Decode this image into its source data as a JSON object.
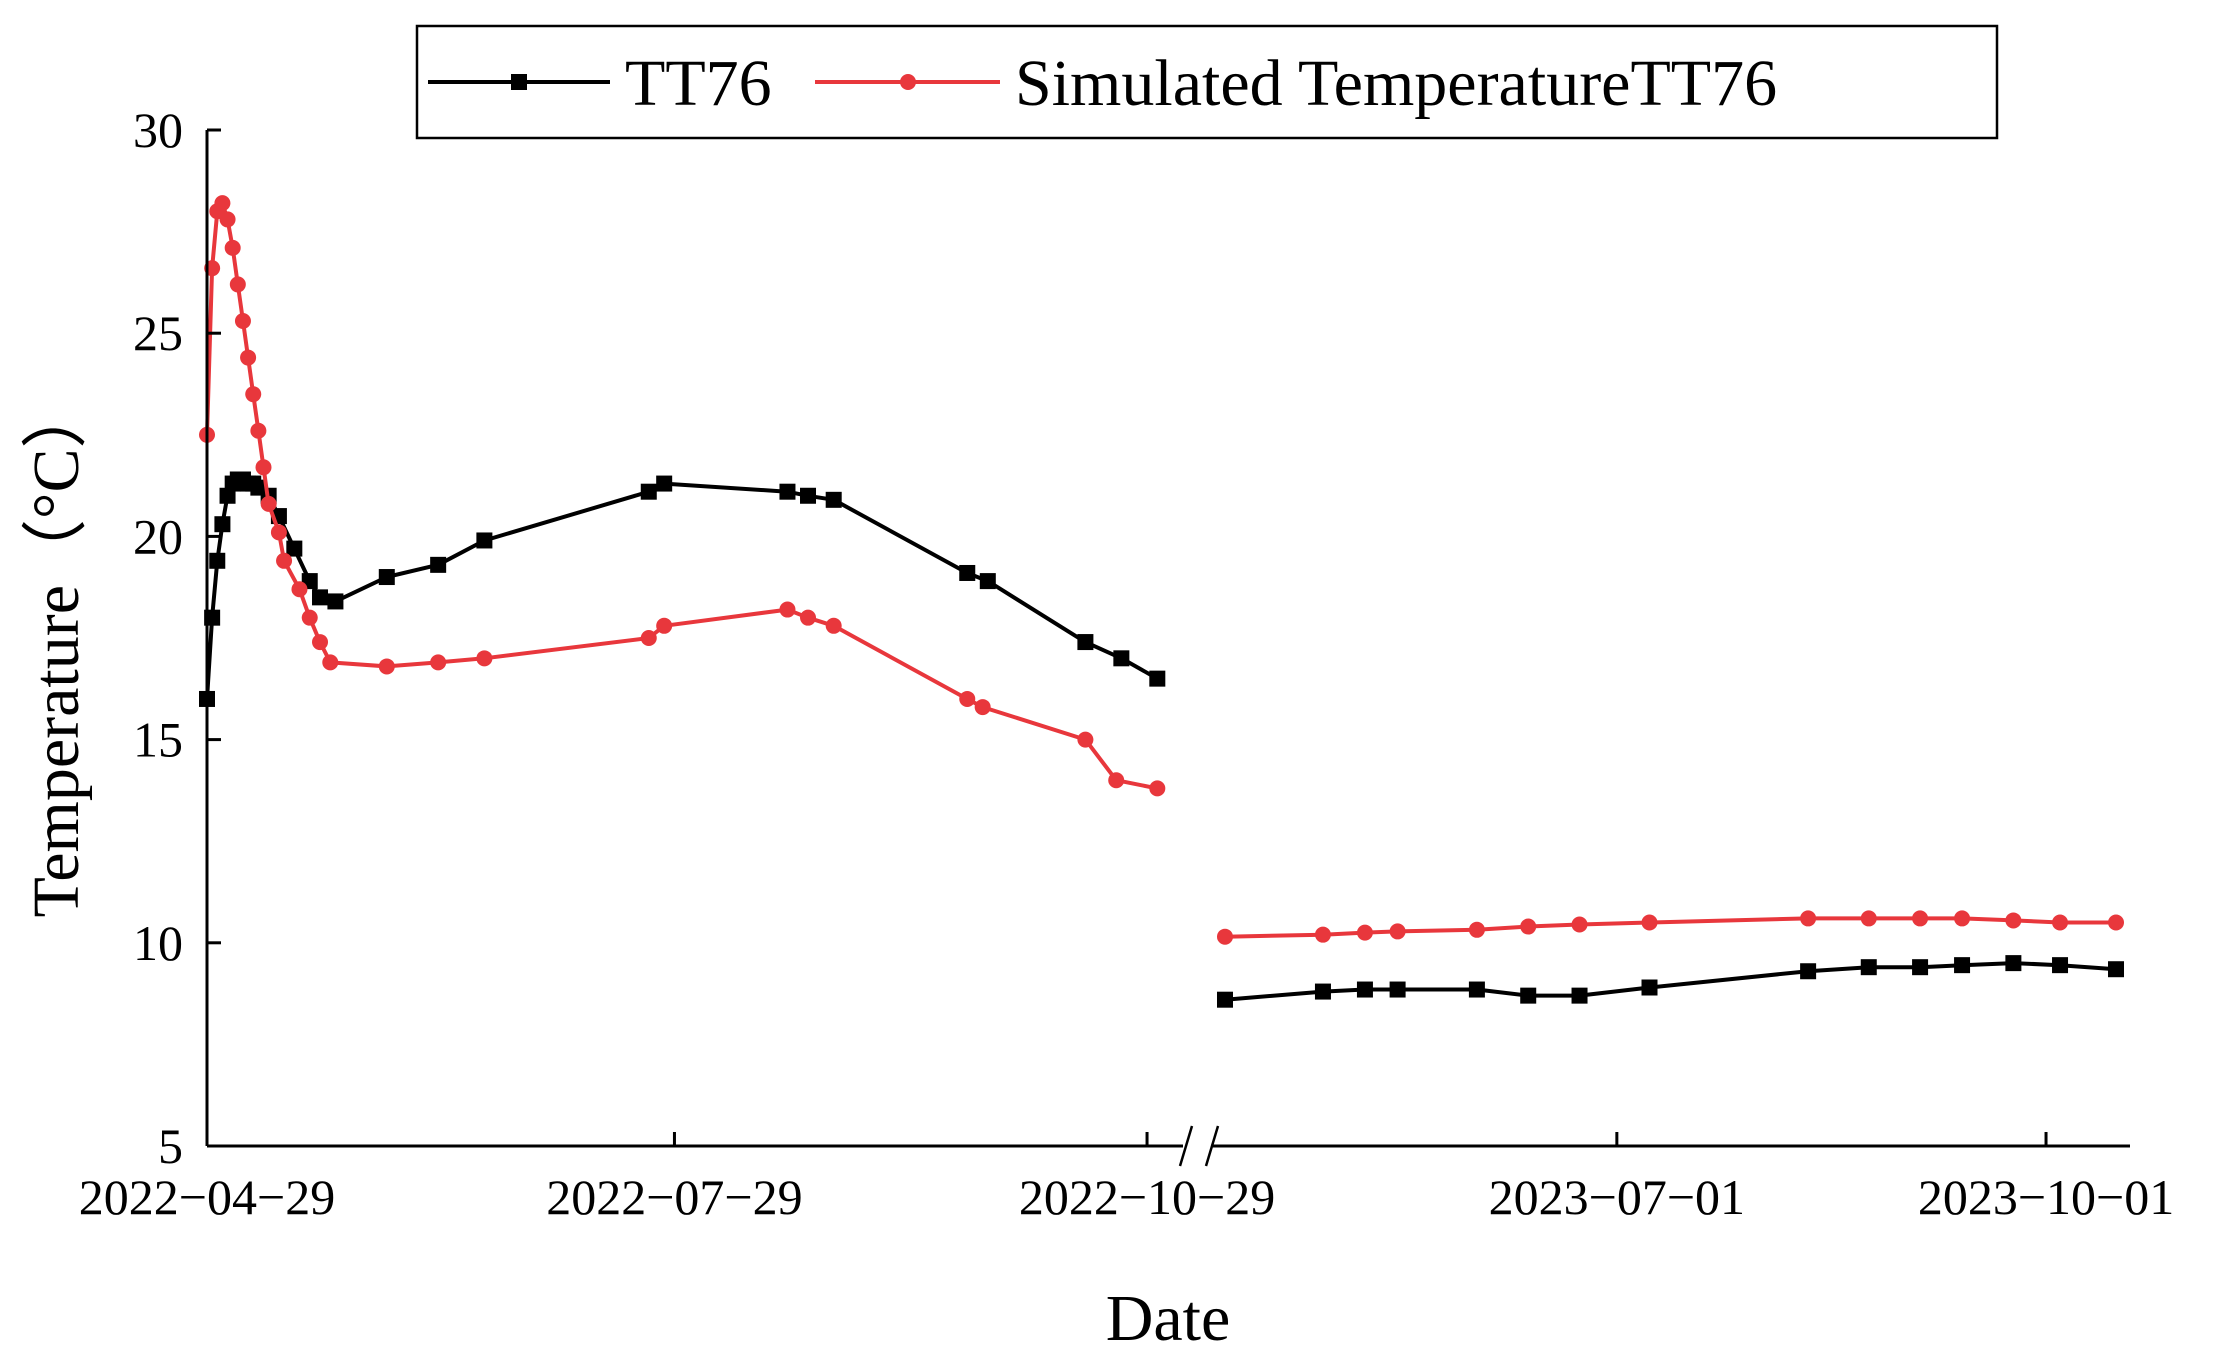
{
  "chart_data": {
    "type": "line",
    "xlabel": "Date",
    "ylabel": "Temperature（°C）",
    "ylim": [
      5,
      30
    ],
    "yticks": [
      5,
      10,
      15,
      20,
      25,
      30
    ],
    "xaxis_break": true,
    "x_segments": [
      {
        "range": [
          "2022-04-29",
          "2022-11-05"
        ],
        "ticks": [
          "2022-04-29",
          "2022-07-29",
          "2022-10-29"
        ]
      },
      {
        "range": [
          "2023-04-05",
          "2023-10-19"
        ],
        "ticks": [
          "2023-07-01",
          "2023-10-01"
        ]
      }
    ],
    "legend": {
      "position": "top",
      "entries": [
        "TT76",
        "Simulated TemperatureTT76"
      ]
    },
    "colors": {
      "TT76": "#000000",
      "Simulated TemperatureTT76": "#e8373c"
    },
    "series": [
      {
        "name": "TT76",
        "color": "#000000",
        "marker": "square",
        "segments": [
          [
            [
              "2022-04-29",
              16.0
            ],
            [
              "2022-04-30",
              18.0
            ],
            [
              "2022-05-01",
              19.4
            ],
            [
              "2022-05-02",
              20.3
            ],
            [
              "2022-05-03",
              21.0
            ],
            [
              "2022-05-04",
              21.3
            ],
            [
              "2022-05-05",
              21.4
            ],
            [
              "2022-05-06",
              21.4
            ],
            [
              "2022-05-07",
              21.3
            ],
            [
              "2022-05-08",
              21.3
            ],
            [
              "2022-05-09",
              21.2
            ],
            [
              "2022-05-11",
              21.0
            ],
            [
              "2022-05-13",
              20.5
            ],
            [
              "2022-05-16",
              19.7
            ],
            [
              "2022-05-19",
              18.9
            ],
            [
              "2022-05-21",
              18.5
            ],
            [
              "2022-05-24",
              18.4
            ],
            [
              "2022-06-03",
              19.0
            ],
            [
              "2022-06-13",
              19.3
            ],
            [
              "2022-06-22",
              19.9
            ],
            [
              "2022-07-24",
              21.1
            ],
            [
              "2022-07-27",
              21.3
            ],
            [
              "2022-08-20",
              21.1
            ],
            [
              "2022-08-24",
              21.0
            ],
            [
              "2022-08-29",
              20.9
            ],
            [
              "2022-09-24",
              19.1
            ],
            [
              "2022-09-28",
              18.9
            ],
            [
              "2022-10-17",
              17.4
            ],
            [
              "2022-10-24",
              17.0
            ],
            [
              "2022-10-31",
              16.5
            ]
          ],
          [
            [
              "2023-04-08",
              8.6
            ],
            [
              "2023-04-29",
              8.8
            ],
            [
              "2023-05-08",
              8.85
            ],
            [
              "2023-05-15",
              8.85
            ],
            [
              "2023-06-01",
              8.85
            ],
            [
              "2023-06-12",
              8.7
            ],
            [
              "2023-06-23",
              8.7
            ],
            [
              "2023-07-08",
              8.9
            ],
            [
              "2023-08-11",
              9.3
            ],
            [
              "2023-08-24",
              9.4
            ],
            [
              "2023-09-04",
              9.4
            ],
            [
              "2023-09-13",
              9.45
            ],
            [
              "2023-09-24",
              9.5
            ],
            [
              "2023-10-04",
              9.45
            ],
            [
              "2023-10-16",
              9.35
            ]
          ]
        ]
      },
      {
        "name": "Simulated TemperatureTT76",
        "color": "#e8373c",
        "marker": "circle",
        "segments": [
          [
            [
              "2022-04-29",
              22.5
            ],
            [
              "2022-04-30",
              26.6
            ],
            [
              "2022-05-01",
              28.0
            ],
            [
              "2022-05-02",
              28.2
            ],
            [
              "2022-05-03",
              27.8
            ],
            [
              "2022-05-04",
              27.1
            ],
            [
              "2022-05-05",
              26.2
            ],
            [
              "2022-05-06",
              25.3
            ],
            [
              "2022-05-07",
              24.4
            ],
            [
              "2022-05-08",
              23.5
            ],
            [
              "2022-05-09",
              22.6
            ],
            [
              "2022-05-10",
              21.7
            ],
            [
              "2022-05-11",
              20.8
            ],
            [
              "2022-05-13",
              20.1
            ],
            [
              "2022-05-14",
              19.4
            ],
            [
              "2022-05-17",
              18.7
            ],
            [
              "2022-05-19",
              18.0
            ],
            [
              "2022-05-21",
              17.4
            ],
            [
              "2022-05-23",
              16.9
            ],
            [
              "2022-06-03",
              16.8
            ],
            [
              "2022-06-13",
              16.9
            ],
            [
              "2022-06-22",
              17.0
            ],
            [
              "2022-07-24",
              17.5
            ],
            [
              "2022-07-27",
              17.8
            ],
            [
              "2022-08-20",
              18.2
            ],
            [
              "2022-08-24",
              18.0
            ],
            [
              "2022-08-29",
              17.8
            ],
            [
              "2022-09-24",
              16.0
            ],
            [
              "2022-09-27",
              15.8
            ],
            [
              "2022-10-17",
              15.0
            ],
            [
              "2022-10-23",
              14.0
            ],
            [
              "2022-10-31",
              13.8
            ]
          ],
          [
            [
              "2023-04-08",
              10.15
            ],
            [
              "2023-04-29",
              10.2
            ],
            [
              "2023-05-08",
              10.25
            ],
            [
              "2023-05-15",
              10.28
            ],
            [
              "2023-06-01",
              10.32
            ],
            [
              "2023-06-12",
              10.4
            ],
            [
              "2023-06-23",
              10.45
            ],
            [
              "2023-07-08",
              10.5
            ],
            [
              "2023-08-11",
              10.6
            ],
            [
              "2023-08-24",
              10.6
            ],
            [
              "2023-09-04",
              10.6
            ],
            [
              "2023-09-13",
              10.6
            ],
            [
              "2023-09-24",
              10.55
            ],
            [
              "2023-10-04",
              10.5
            ],
            [
              "2023-10-16",
              10.5
            ]
          ]
        ]
      }
    ]
  }
}
